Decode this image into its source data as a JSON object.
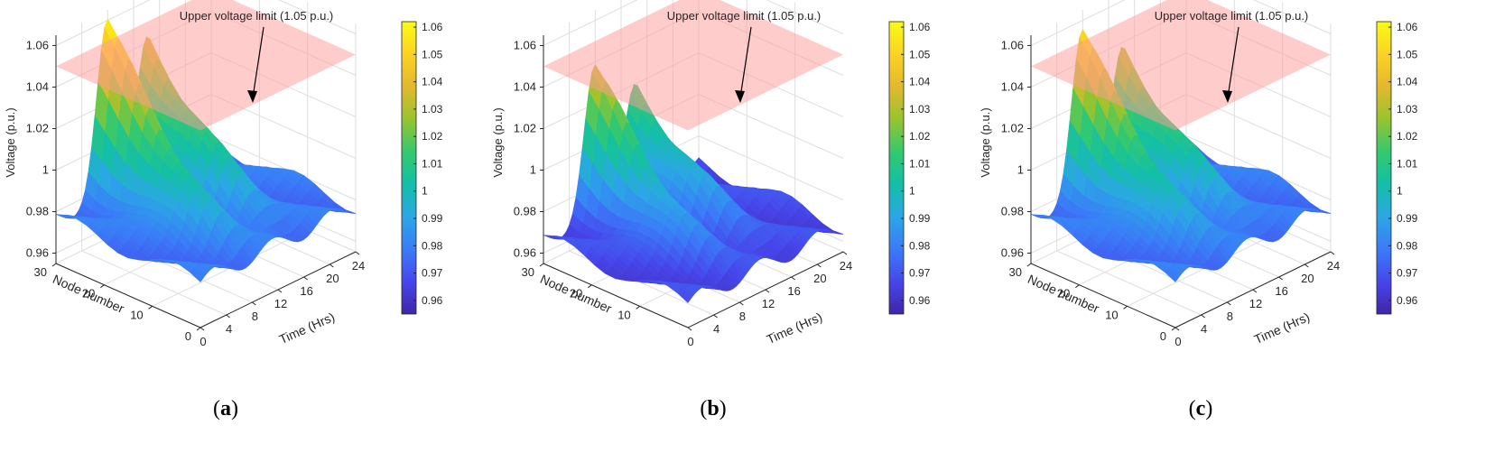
{
  "figure": {
    "panels": [
      {
        "id": "a",
        "caption": "(a)",
        "label_open": "(",
        "label_letter": "a",
        "label_close": ")"
      },
      {
        "id": "b",
        "caption": "(b)",
        "label_open": "(",
        "label_letter": "b",
        "label_close": ")"
      },
      {
        "id": "c",
        "caption": "(c)",
        "label_open": "(",
        "label_letter": "c",
        "label_close": ")"
      }
    ]
  },
  "colors": {
    "limit_plane": "#ff9a9a",
    "colormap": [
      "#3e26a8",
      "#4746eb",
      "#3a7cf8",
      "#2ba7e5",
      "#13bfa6",
      "#34c96e",
      "#97c42e",
      "#e3b82e",
      "#fbd324",
      "#f9fb15"
    ],
    "grid": "#dedede",
    "axis": "#262626"
  },
  "chart_data": [
    {
      "panel": "a",
      "type": "surface",
      "annotation": "Upper voltage limit (1.05 p.u.)",
      "xlabel": "Time (Hrs)",
      "ylabel": "Node number",
      "zlabel": "Voltage (p.u.)",
      "xlim": [
        0,
        24
      ],
      "ylim": [
        0,
        30
      ],
      "zlim": [
        0.955,
        1.065
      ],
      "x_ticks": [
        "0",
        "4",
        "8",
        "12",
        "16",
        "20",
        "24"
      ],
      "y_ticks": [
        "0",
        "10",
        "20",
        "30"
      ],
      "z_ticks": [
        "0.96",
        "0.98",
        "1",
        "1.02",
        "1.04",
        "1.06"
      ],
      "z_tick_values": [
        0.96,
        0.98,
        1.0,
        1.02,
        1.04,
        1.06
      ],
      "limit_plane_value": 1.05,
      "colorbar": {
        "range": [
          0.955,
          1.062
        ],
        "ticks": [
          "0.96",
          "0.97",
          "0.98",
          "0.99",
          "1",
          "1.01",
          "1.02",
          "1.03",
          "1.04",
          "1.05",
          "1.06"
        ]
      },
      "surface_profile": {
        "base": 0.977,
        "peaks": [
          {
            "hour": 8,
            "voltage": 1.057
          },
          {
            "hour": 14,
            "voltage": 1.043
          }
        ],
        "peak_node": 30
      }
    },
    {
      "panel": "b",
      "type": "surface",
      "annotation": "Upper voltage limit (1.05 p.u.)",
      "xlabel": "Time (Hrs)",
      "ylabel": "Node number",
      "zlabel": "Voltage (p.u.)",
      "xlim": [
        0,
        24
      ],
      "ylim": [
        0,
        30
      ],
      "zlim": [
        0.955,
        1.065
      ],
      "x_ticks": [
        "0",
        "4",
        "8",
        "12",
        "16",
        "20",
        "24"
      ],
      "y_ticks": [
        "10",
        "20",
        "30"
      ],
      "z_ticks": [
        "0.96",
        "0.98",
        "1",
        "1.02",
        "1.04",
        "1.06"
      ],
      "z_tick_values": [
        0.96,
        0.98,
        1.0,
        1.02,
        1.04,
        1.06
      ],
      "limit_plane_value": 1.05,
      "colorbar": {
        "range": [
          0.955,
          1.062
        ],
        "ticks": [
          "0.96",
          "0.97",
          "0.98",
          "0.99",
          "1",
          "1.01",
          "1.02",
          "1.03",
          "1.04",
          "1.05",
          "1.06"
        ]
      },
      "surface_profile": {
        "base": 0.967,
        "peaks": [
          {
            "hour": 8,
            "voltage": 1.035
          },
          {
            "hour": 14,
            "voltage": 1.02
          }
        ],
        "peak_node": 30
      }
    },
    {
      "panel": "c",
      "type": "surface",
      "annotation": "Upper voltage limit (1.05 p.u.)",
      "xlabel": "Time (Hrs)",
      "ylabel": "Node number",
      "zlabel": "Voltage (p.u.)",
      "xlim": [
        0,
        24
      ],
      "ylim": [
        0,
        30
      ],
      "zlim": [
        0.955,
        1.065
      ],
      "x_ticks": [
        "0",
        "4",
        "8",
        "12",
        "16",
        "20",
        "24"
      ],
      "y_ticks": [
        "0",
        "10",
        "20",
        "30"
      ],
      "z_ticks": [
        "0.96",
        "0.98",
        "1",
        "1.02",
        "1.04",
        "1.06"
      ],
      "z_tick_values": [
        0.96,
        0.98,
        1.0,
        1.02,
        1.04,
        1.06
      ],
      "limit_plane_value": 1.05,
      "colorbar": {
        "range": [
          0.955,
          1.062
        ],
        "ticks": [
          "0.96",
          "0.97",
          "0.98",
          "0.99",
          "1",
          "1.01",
          "1.02",
          "1.03",
          "1.04",
          "1.05",
          "1.06"
        ]
      },
      "surface_profile": {
        "base": 0.977,
        "peaks": [
          {
            "hour": 8,
            "voltage": 1.052
          },
          {
            "hour": 14,
            "voltage": 1.038
          }
        ],
        "peak_node": 30
      }
    }
  ]
}
